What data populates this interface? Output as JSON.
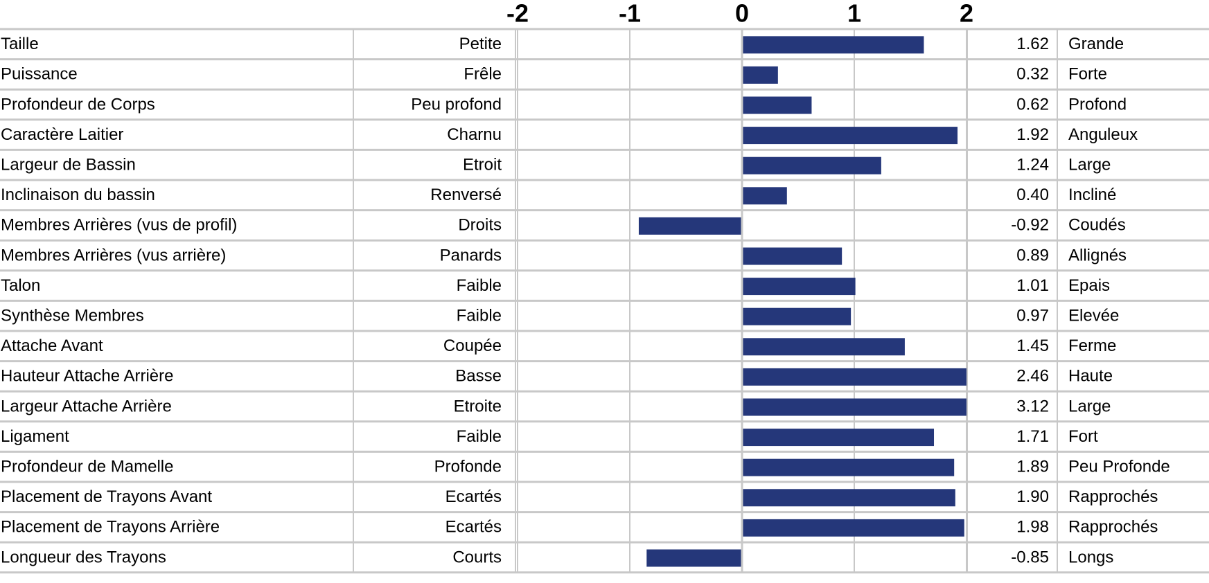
{
  "chart_data": {
    "type": "bar",
    "orientation": "horizontal",
    "axis_ticks": [
      "-2",
      "-1",
      "0",
      "1",
      "2"
    ],
    "tick_values": [
      -2,
      -1,
      0,
      1,
      2
    ],
    "xlim": [
      -2,
      2
    ],
    "grid": true,
    "bar_color": "#25377a",
    "grid_color": "#c8c8c8",
    "rows": [
      {
        "trait": "Taille",
        "low": "Petite",
        "value": 1.62,
        "value_label": "1.62",
        "high": "Grande"
      },
      {
        "trait": "Puissance",
        "low": "Frêle",
        "value": 0.32,
        "value_label": "0.32",
        "high": "Forte"
      },
      {
        "trait": "Profondeur de Corps",
        "low": "Peu profond",
        "value": 0.62,
        "value_label": "0.62",
        "high": "Profond"
      },
      {
        "trait": "Caractère Laitier",
        "low": "Charnu",
        "value": 1.92,
        "value_label": "1.92",
        "high": "Anguleux"
      },
      {
        "trait": "Largeur de Bassin",
        "low": "Etroit",
        "value": 1.24,
        "value_label": "1.24",
        "high": "Large"
      },
      {
        "trait": "Inclinaison du bassin",
        "low": "Renversé",
        "value": 0.4,
        "value_label": "0.40",
        "high": "Incliné"
      },
      {
        "trait": "Membres Arrières (vus de profil)",
        "low": "Droits",
        "value": -0.92,
        "value_label": "-0.92",
        "high": "Coudés"
      },
      {
        "trait": "Membres Arrières (vus arrière)",
        "low": "Panards",
        "value": 0.89,
        "value_label": "0.89",
        "high": "Allignés"
      },
      {
        "trait": "Talon",
        "low": "Faible",
        "value": 1.01,
        "value_label": "1.01",
        "high": "Epais"
      },
      {
        "trait": "Synthèse Membres",
        "low": "Faible",
        "value": 0.97,
        "value_label": "0.97",
        "high": "Elevée"
      },
      {
        "trait": "Attache Avant",
        "low": "Coupée",
        "value": 1.45,
        "value_label": "1.45",
        "high": "Ferme"
      },
      {
        "trait": "Hauteur Attache Arrière",
        "low": "Basse",
        "value": 2.46,
        "value_label": "2.46",
        "high": "Haute"
      },
      {
        "trait": "Largeur Attache Arrière",
        "low": "Etroite",
        "value": 3.12,
        "value_label": "3.12",
        "high": "Large"
      },
      {
        "trait": "Ligament",
        "low": "Faible",
        "value": 1.71,
        "value_label": "1.71",
        "high": "Fort"
      },
      {
        "trait": "Profondeur de Mamelle",
        "low": "Profonde",
        "value": 1.89,
        "value_label": "1.89",
        "high": "Peu Profonde"
      },
      {
        "trait": "Placement de Trayons Avant",
        "low": "Ecartés",
        "value": 1.9,
        "value_label": "1.90",
        "high": "Rapprochés"
      },
      {
        "trait": "Placement de Trayons Arrière",
        "low": "Ecartés",
        "value": 1.98,
        "value_label": "1.98",
        "high": "Rapprochés"
      },
      {
        "trait": "Longueur des Trayons",
        "low": "Courts",
        "value": -0.85,
        "value_label": "-0.85",
        "high": "Longs"
      }
    ]
  }
}
